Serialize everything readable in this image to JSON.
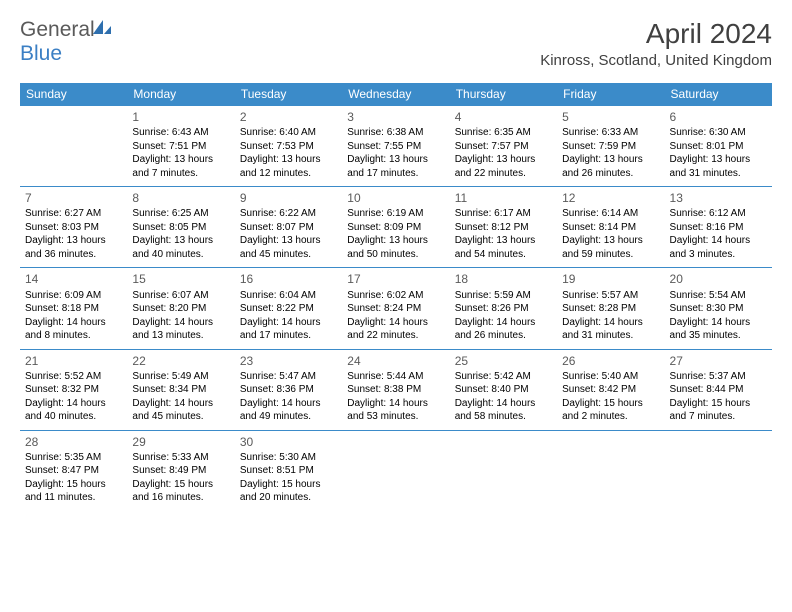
{
  "brand": {
    "general": "General",
    "blue": "Blue"
  },
  "header": {
    "title": "April 2024",
    "location": "Kinross, Scotland, United Kingdom"
  },
  "colors": {
    "header_bg": "#3b8bc9",
    "header_text": "#ffffff",
    "divider": "#3b8bc9",
    "brand_gray": "#5a5a5a",
    "brand_blue": "#3b7fc4"
  },
  "weekdays": [
    "Sunday",
    "Monday",
    "Tuesday",
    "Wednesday",
    "Thursday",
    "Friday",
    "Saturday"
  ],
  "weeks": [
    [
      {
        "num": "",
        "sunrise": "",
        "sunset": "",
        "daylight": ""
      },
      {
        "num": "1",
        "sunrise": "Sunrise: 6:43 AM",
        "sunset": "Sunset: 7:51 PM",
        "daylight": "Daylight: 13 hours and 7 minutes."
      },
      {
        "num": "2",
        "sunrise": "Sunrise: 6:40 AM",
        "sunset": "Sunset: 7:53 PM",
        "daylight": "Daylight: 13 hours and 12 minutes."
      },
      {
        "num": "3",
        "sunrise": "Sunrise: 6:38 AM",
        "sunset": "Sunset: 7:55 PM",
        "daylight": "Daylight: 13 hours and 17 minutes."
      },
      {
        "num": "4",
        "sunrise": "Sunrise: 6:35 AM",
        "sunset": "Sunset: 7:57 PM",
        "daylight": "Daylight: 13 hours and 22 minutes."
      },
      {
        "num": "5",
        "sunrise": "Sunrise: 6:33 AM",
        "sunset": "Sunset: 7:59 PM",
        "daylight": "Daylight: 13 hours and 26 minutes."
      },
      {
        "num": "6",
        "sunrise": "Sunrise: 6:30 AM",
        "sunset": "Sunset: 8:01 PM",
        "daylight": "Daylight: 13 hours and 31 minutes."
      }
    ],
    [
      {
        "num": "7",
        "sunrise": "Sunrise: 6:27 AM",
        "sunset": "Sunset: 8:03 PM",
        "daylight": "Daylight: 13 hours and 36 minutes."
      },
      {
        "num": "8",
        "sunrise": "Sunrise: 6:25 AM",
        "sunset": "Sunset: 8:05 PM",
        "daylight": "Daylight: 13 hours and 40 minutes."
      },
      {
        "num": "9",
        "sunrise": "Sunrise: 6:22 AM",
        "sunset": "Sunset: 8:07 PM",
        "daylight": "Daylight: 13 hours and 45 minutes."
      },
      {
        "num": "10",
        "sunrise": "Sunrise: 6:19 AM",
        "sunset": "Sunset: 8:09 PM",
        "daylight": "Daylight: 13 hours and 50 minutes."
      },
      {
        "num": "11",
        "sunrise": "Sunrise: 6:17 AM",
        "sunset": "Sunset: 8:12 PM",
        "daylight": "Daylight: 13 hours and 54 minutes."
      },
      {
        "num": "12",
        "sunrise": "Sunrise: 6:14 AM",
        "sunset": "Sunset: 8:14 PM",
        "daylight": "Daylight: 13 hours and 59 minutes."
      },
      {
        "num": "13",
        "sunrise": "Sunrise: 6:12 AM",
        "sunset": "Sunset: 8:16 PM",
        "daylight": "Daylight: 14 hours and 3 minutes."
      }
    ],
    [
      {
        "num": "14",
        "sunrise": "Sunrise: 6:09 AM",
        "sunset": "Sunset: 8:18 PM",
        "daylight": "Daylight: 14 hours and 8 minutes."
      },
      {
        "num": "15",
        "sunrise": "Sunrise: 6:07 AM",
        "sunset": "Sunset: 8:20 PM",
        "daylight": "Daylight: 14 hours and 13 minutes."
      },
      {
        "num": "16",
        "sunrise": "Sunrise: 6:04 AM",
        "sunset": "Sunset: 8:22 PM",
        "daylight": "Daylight: 14 hours and 17 minutes."
      },
      {
        "num": "17",
        "sunrise": "Sunrise: 6:02 AM",
        "sunset": "Sunset: 8:24 PM",
        "daylight": "Daylight: 14 hours and 22 minutes."
      },
      {
        "num": "18",
        "sunrise": "Sunrise: 5:59 AM",
        "sunset": "Sunset: 8:26 PM",
        "daylight": "Daylight: 14 hours and 26 minutes."
      },
      {
        "num": "19",
        "sunrise": "Sunrise: 5:57 AM",
        "sunset": "Sunset: 8:28 PM",
        "daylight": "Daylight: 14 hours and 31 minutes."
      },
      {
        "num": "20",
        "sunrise": "Sunrise: 5:54 AM",
        "sunset": "Sunset: 8:30 PM",
        "daylight": "Daylight: 14 hours and 35 minutes."
      }
    ],
    [
      {
        "num": "21",
        "sunrise": "Sunrise: 5:52 AM",
        "sunset": "Sunset: 8:32 PM",
        "daylight": "Daylight: 14 hours and 40 minutes."
      },
      {
        "num": "22",
        "sunrise": "Sunrise: 5:49 AM",
        "sunset": "Sunset: 8:34 PM",
        "daylight": "Daylight: 14 hours and 45 minutes."
      },
      {
        "num": "23",
        "sunrise": "Sunrise: 5:47 AM",
        "sunset": "Sunset: 8:36 PM",
        "daylight": "Daylight: 14 hours and 49 minutes."
      },
      {
        "num": "24",
        "sunrise": "Sunrise: 5:44 AM",
        "sunset": "Sunset: 8:38 PM",
        "daylight": "Daylight: 14 hours and 53 minutes."
      },
      {
        "num": "25",
        "sunrise": "Sunrise: 5:42 AM",
        "sunset": "Sunset: 8:40 PM",
        "daylight": "Daylight: 14 hours and 58 minutes."
      },
      {
        "num": "26",
        "sunrise": "Sunrise: 5:40 AM",
        "sunset": "Sunset: 8:42 PM",
        "daylight": "Daylight: 15 hours and 2 minutes."
      },
      {
        "num": "27",
        "sunrise": "Sunrise: 5:37 AM",
        "sunset": "Sunset: 8:44 PM",
        "daylight": "Daylight: 15 hours and 7 minutes."
      }
    ],
    [
      {
        "num": "28",
        "sunrise": "Sunrise: 5:35 AM",
        "sunset": "Sunset: 8:47 PM",
        "daylight": "Daylight: 15 hours and 11 minutes."
      },
      {
        "num": "29",
        "sunrise": "Sunrise: 5:33 AM",
        "sunset": "Sunset: 8:49 PM",
        "daylight": "Daylight: 15 hours and 16 minutes."
      },
      {
        "num": "30",
        "sunrise": "Sunrise: 5:30 AM",
        "sunset": "Sunset: 8:51 PM",
        "daylight": "Daylight: 15 hours and 20 minutes."
      },
      {
        "num": "",
        "sunrise": "",
        "sunset": "",
        "daylight": ""
      },
      {
        "num": "",
        "sunrise": "",
        "sunset": "",
        "daylight": ""
      },
      {
        "num": "",
        "sunrise": "",
        "sunset": "",
        "daylight": ""
      },
      {
        "num": "",
        "sunrise": "",
        "sunset": "",
        "daylight": ""
      }
    ]
  ]
}
